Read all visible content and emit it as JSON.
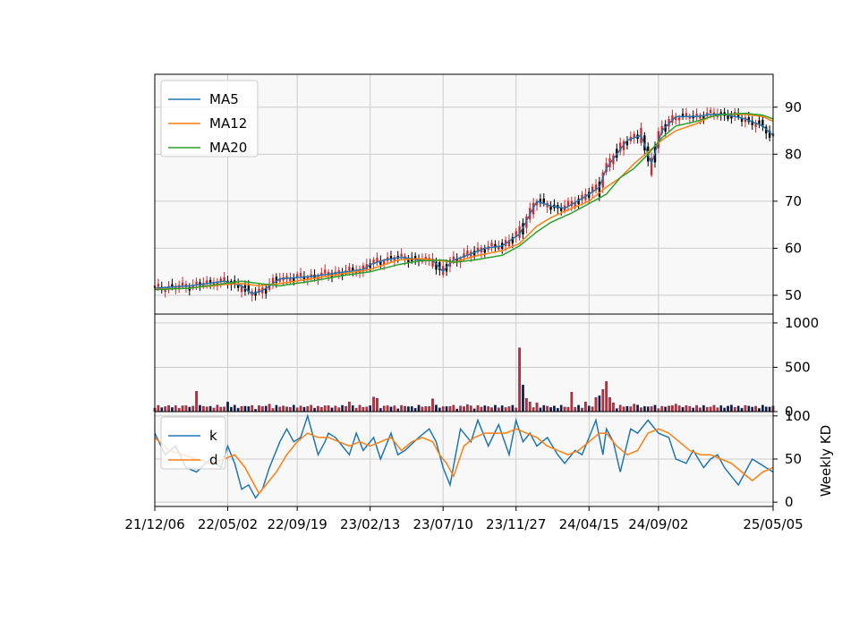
{
  "chart_data": {
    "type": "line",
    "x_tick_labels": [
      "21/12/06",
      "22/05/02",
      "22/09/19",
      "23/02/13",
      "23/07/10",
      "23/11/27",
      "24/04/15",
      "24/09/02",
      "25/05/05"
    ],
    "weeks_span": 178,
    "x_tick_weeks": [
      0,
      21,
      41,
      62,
      83,
      104,
      125,
      145,
      178
    ],
    "colors": {
      "up": "#d62728",
      "down": "#000000",
      "ma5": "#1f77b4",
      "ma12": "#ff7f0e",
      "ma20": "#2ca02c",
      "k": "#1f77b4",
      "d": "#ff7f0e",
      "panel_bg": "#f8f8f8",
      "grid": "#cccccc"
    },
    "price_panel": {
      "ylim": [
        46,
        97
      ],
      "yticks": [
        50,
        60,
        70,
        80,
        90
      ],
      "legend": [
        "MA5",
        "MA12",
        "MA20"
      ],
      "legend_position": "upper-left",
      "series": [
        {
          "name": "MA5",
          "weeks": [
            0,
            10,
            20,
            25,
            28,
            31,
            36,
            45,
            55,
            60,
            62,
            66,
            70,
            72,
            76,
            80,
            83,
            84,
            86,
            90,
            95,
            100,
            105,
            110,
            114,
            118,
            124,
            128,
            130,
            136,
            140,
            143,
            146,
            150,
            156,
            160,
            164,
            170,
            175,
            178
          ],
          "values": [
            51.5,
            52,
            53,
            52,
            50.3,
            51,
            53.5,
            54,
            55,
            55.5,
            56.5,
            57.5,
            58,
            58,
            57.5,
            57.5,
            55,
            56,
            57.5,
            58.5,
            60,
            60.5,
            63,
            70,
            69,
            68.5,
            71,
            73,
            77,
            83,
            84,
            78,
            85,
            88,
            88,
            88.5,
            88.5,
            87.5,
            86,
            84
          ]
        },
        {
          "name": "MA12",
          "weeks": [
            0,
            10,
            20,
            25,
            30,
            36,
            45,
            55,
            62,
            70,
            76,
            83,
            86,
            92,
            100,
            105,
            110,
            114,
            120,
            125,
            130,
            134,
            138,
            142,
            146,
            150,
            156,
            160,
            164,
            170,
            175,
            178
          ],
          "values": [
            51.3,
            51.5,
            52.3,
            52.5,
            52,
            52.5,
            53.5,
            54.7,
            55.5,
            57.5,
            57.8,
            57.3,
            57,
            58.3,
            59.5,
            61,
            64.7,
            66.5,
            68.5,
            70,
            73,
            75,
            78,
            80.5,
            83,
            85,
            86.5,
            88,
            88.5,
            88.5,
            88,
            87
          ]
        },
        {
          "name": "MA20",
          "weeks": [
            0,
            10,
            20,
            25,
            30,
            36,
            45,
            55,
            62,
            70,
            76,
            83,
            86,
            92,
            100,
            105,
            110,
            114,
            120,
            125,
            130,
            134,
            138,
            142,
            146,
            150,
            156,
            160,
            164,
            170,
            175,
            178
          ],
          "values": [
            51.2,
            51.5,
            52.5,
            53,
            52.5,
            52,
            53,
            54.3,
            55,
            56.5,
            57.3,
            57.5,
            57,
            57.5,
            58.5,
            60.5,
            63.5,
            65.5,
            67.5,
            69.5,
            71.5,
            75,
            77,
            80,
            83.5,
            86,
            87,
            88,
            88.5,
            88.7,
            88.3,
            87.5
          ]
        }
      ]
    },
    "volume_panel": {
      "ylim": [
        0,
        1100
      ],
      "yticks": [
        0,
        500,
        1000
      ],
      "spikes": {
        "12": 230,
        "21": 110,
        "33": 85,
        "56": 110,
        "63": 165,
        "64": 150,
        "80": 145,
        "90": 80,
        "105": 720,
        "106": 300,
        "107": 150,
        "108": 110,
        "110": 100,
        "120": 220,
        "124": 110,
        "127": 160,
        "128": 180,
        "129": 250,
        "130": 340,
        "131": 160,
        "132": 100,
        "138": 85,
        "150": 85,
        "166": 75,
        "170": 70
      }
    },
    "kd_panel": {
      "ylim": [
        -5,
        105
      ],
      "yticks": [
        0,
        50,
        100
      ],
      "ylabel": "Weekly KD",
      "legend": [
        "k",
        "d"
      ],
      "legend_position": "upper-left",
      "series": [
        {
          "name": "k",
          "weeks": [
            0,
            3,
            6,
            9,
            12,
            16,
            19,
            21,
            23,
            25,
            27,
            29,
            31,
            33,
            36,
            38,
            40,
            42,
            44,
            47,
            49,
            50,
            52,
            56,
            58,
            60,
            63,
            65,
            68,
            70,
            72,
            76,
            79,
            81,
            83,
            85,
            88,
            91,
            93,
            96,
            99,
            102,
            104,
            106,
            108,
            110,
            113,
            116,
            118,
            121,
            123,
            125,
            127,
            129,
            130,
            132,
            134,
            137,
            139,
            142,
            145,
            148,
            150,
            153,
            155,
            158,
            160,
            162,
            164,
            166,
            168,
            170,
            172,
            174,
            176,
            178
          ],
          "values": [
            80,
            55,
            65,
            40,
            35,
            50,
            40,
            65,
            45,
            15,
            20,
            5,
            15,
            40,
            70,
            85,
            70,
            75,
            100,
            55,
            70,
            80,
            75,
            55,
            80,
            60,
            75,
            50,
            80,
            55,
            60,
            75,
            85,
            70,
            40,
            20,
            85,
            70,
            95,
            65,
            90,
            55,
            95,
            70,
            80,
            65,
            75,
            55,
            45,
            60,
            55,
            75,
            95,
            55,
            85,
            70,
            35,
            85,
            80,
            95,
            80,
            75,
            50,
            45,
            60,
            40,
            50,
            55,
            40,
            30,
            20,
            35,
            50,
            45,
            40,
            35
          ]
        },
        {
          "name": "d",
          "weeks": [
            0,
            4,
            8,
            12,
            16,
            20,
            23,
            26,
            28,
            30,
            32,
            35,
            38,
            41,
            44,
            47,
            50,
            53,
            56,
            59,
            62,
            65,
            68,
            71,
            74,
            77,
            80,
            82,
            84,
            86,
            89,
            92,
            95,
            98,
            101,
            104,
            107,
            110,
            113,
            116,
            119,
            122,
            125,
            128,
            130,
            133,
            136,
            139,
            142,
            145,
            148,
            151,
            154,
            157,
            160,
            163,
            166,
            169,
            172,
            175,
            178
          ],
          "values": [
            75,
            60,
            55,
            50,
            45,
            50,
            55,
            40,
            25,
            10,
            20,
            35,
            55,
            70,
            80,
            75,
            75,
            70,
            65,
            70,
            65,
            70,
            75,
            60,
            70,
            75,
            70,
            55,
            45,
            30,
            65,
            75,
            80,
            80,
            80,
            85,
            80,
            75,
            65,
            60,
            55,
            60,
            70,
            80,
            80,
            65,
            55,
            60,
            80,
            85,
            80,
            70,
            60,
            55,
            55,
            50,
            45,
            35,
            25,
            35,
            40
          ]
        }
      ]
    }
  }
}
